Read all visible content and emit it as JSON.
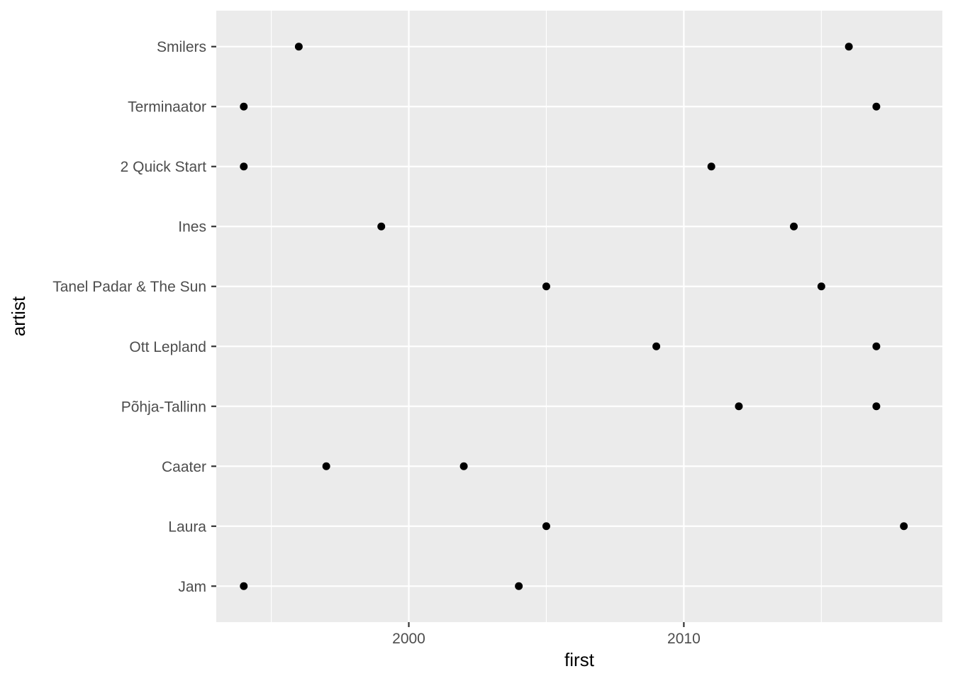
{
  "chart_data": {
    "type": "scatter",
    "xlabel": "first",
    "ylabel": "artist",
    "xlim": [
      1993,
      2019.4
    ],
    "x_ticks": [
      2000,
      2010
    ],
    "x_minor_ticks": [
      1995,
      2005,
      2015
    ],
    "categories": [
      "Jam",
      "Laura",
      "Caater",
      "Põhja-Tallinn",
      "Ott Lepland",
      "Tanel Padar & The Sun",
      "Ines",
      "2 Quick Start",
      "Terminaator",
      "Smilers"
    ],
    "points": [
      {
        "artist": "Smilers",
        "first": 1996
      },
      {
        "artist": "Smilers",
        "first": 2016
      },
      {
        "artist": "Terminaator",
        "first": 1994
      },
      {
        "artist": "Terminaator",
        "first": 2017
      },
      {
        "artist": "2 Quick Start",
        "first": 1994
      },
      {
        "artist": "2 Quick Start",
        "first": 2011
      },
      {
        "artist": "Ines",
        "first": 1999
      },
      {
        "artist": "Ines",
        "first": 2014
      },
      {
        "artist": "Tanel Padar & The Sun",
        "first": 2005
      },
      {
        "artist": "Tanel Padar & The Sun",
        "first": 2015
      },
      {
        "artist": "Ott Lepland",
        "first": 2009
      },
      {
        "artist": "Ott Lepland",
        "first": 2017
      },
      {
        "artist": "Põhja-Tallinn",
        "first": 2012
      },
      {
        "artist": "Põhja-Tallinn",
        "first": 2017
      },
      {
        "artist": "Caater",
        "first": 1997
      },
      {
        "artist": "Caater",
        "first": 2002
      },
      {
        "artist": "Laura",
        "first": 2005
      },
      {
        "artist": "Laura",
        "first": 2018
      },
      {
        "artist": "Jam",
        "first": 1994
      },
      {
        "artist": "Jam",
        "first": 2004
      }
    ],
    "grid": true,
    "colors": {
      "panel": "#ebebeb",
      "gridline": "#ffffff",
      "point": "#000000",
      "tick_text": "#4d4d4d",
      "tick_mark": "#333333"
    }
  }
}
